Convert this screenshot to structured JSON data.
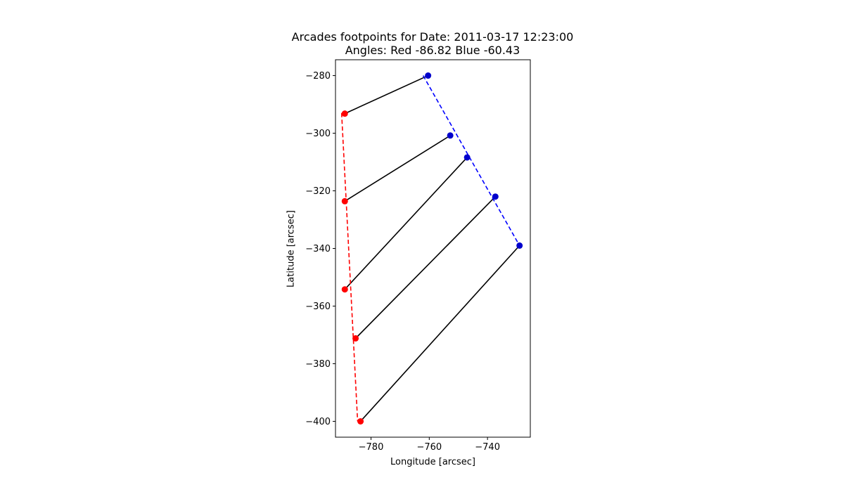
{
  "chart_data": {
    "type": "scatter",
    "title": "Arcades footpoints for Date: 2011-03-17 12:23:00",
    "subtitle": "Angles: Red -86.82 Blue -60.43",
    "xlabel": "Longitude [arcsec]",
    "ylabel": "Latitude [arcsec]",
    "xlim": [
      -792.2,
      -725.3
    ],
    "ylim": [
      -405.5,
      -274.5
    ],
    "xticks": [
      -780,
      -760,
      -740
    ],
    "yticks": [
      -280,
      -300,
      -320,
      -340,
      -360,
      -380,
      -400
    ],
    "xtick_labels": [
      "−780",
      "−760",
      "−740"
    ],
    "ytick_labels": [
      "−280",
      "−300",
      "−320",
      "−340",
      "−360",
      "−380",
      "−400"
    ],
    "grid": false,
    "red_points": {
      "color": "#ff0000",
      "x": [
        -789.0,
        -789.0,
        -789.0,
        -785.3,
        -783.6
      ],
      "y": [
        -293.2,
        -323.6,
        -354.2,
        -371.2,
        -400.0
      ]
    },
    "blue_points": {
      "color": "#0000cc",
      "x": [
        -760.4,
        -752.8,
        -747.0,
        -737.3,
        -729.0
      ],
      "y": [
        -280.0,
        -300.8,
        -308.4,
        -322.0,
        -339.0
      ]
    },
    "arcade_color": "#000000",
    "red_fit_line": {
      "color": "#ff0000",
      "style": "dashed",
      "x": [
        -790.1,
        -784.6
      ],
      "y": [
        -293.0,
        -400.0
      ]
    },
    "blue_fit_line": {
      "color": "#0000ff",
      "style": "dashed",
      "x": [
        -762.1,
        -729.0
      ],
      "y": [
        -280.0,
        -339.0
      ]
    }
  }
}
